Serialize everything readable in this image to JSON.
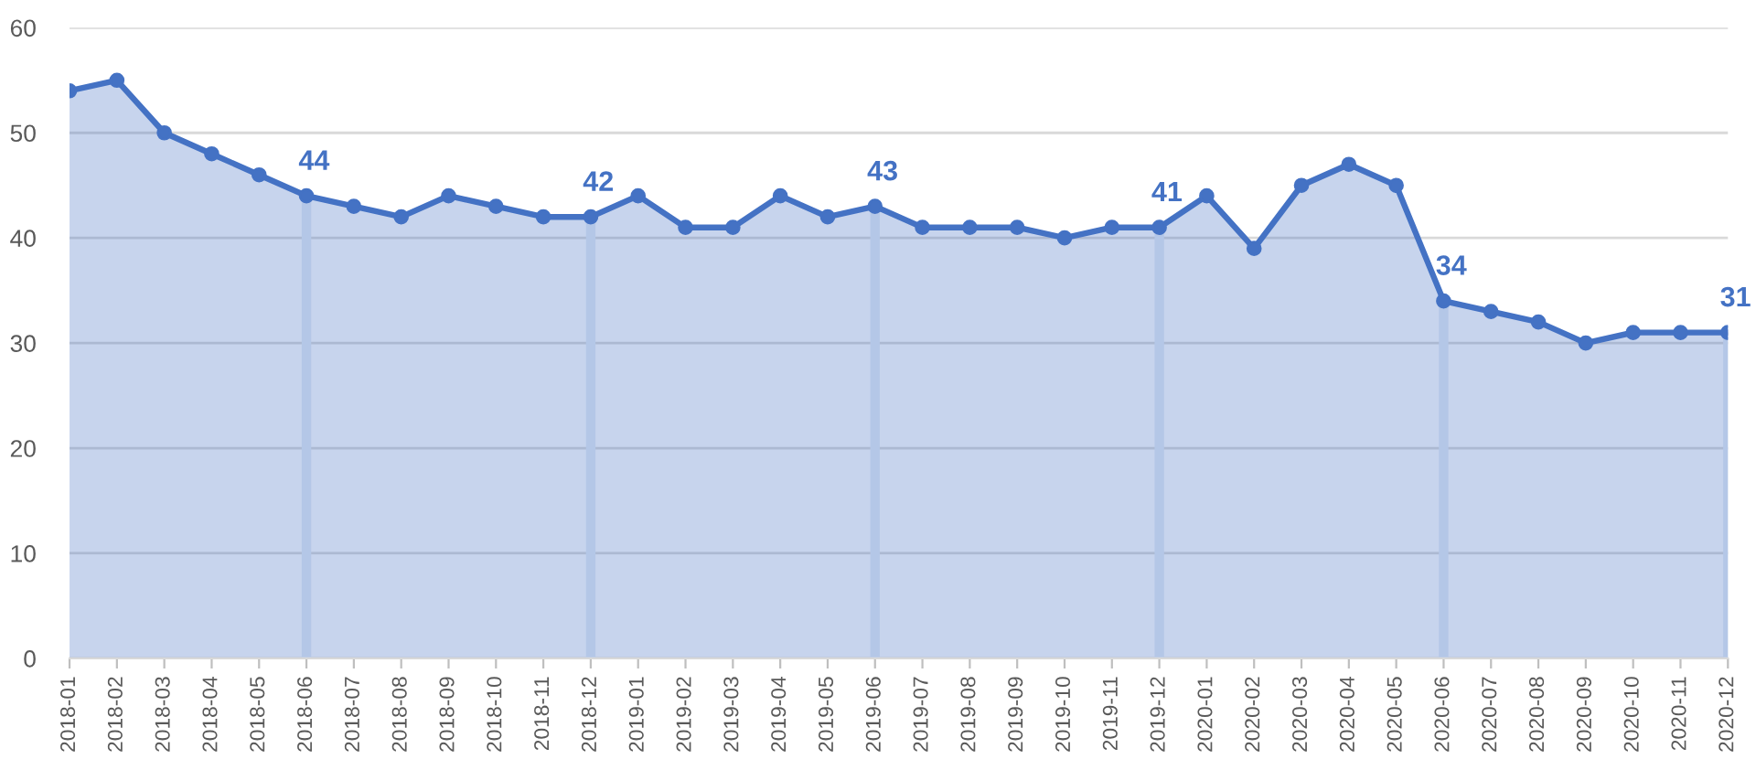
{
  "chart_data": {
    "type": "area",
    "categories": [
      "2018-01",
      "2018-02",
      "2018-03",
      "2018-04",
      "2018-05",
      "2018-06",
      "2018-07",
      "2018-08",
      "2018-09",
      "2018-10",
      "2018-11",
      "2018-12",
      "2019-01",
      "2019-02",
      "2019-03",
      "2019-04",
      "2019-05",
      "2019-06",
      "2019-07",
      "2019-08",
      "2019-09",
      "2019-10",
      "2019-11",
      "2019-12",
      "2020-01",
      "2020-02",
      "2020-03",
      "2020-04",
      "2020-05",
      "2020-06",
      "2020-07",
      "2020-08",
      "2020-09",
      "2020-10",
      "2020-11",
      "2020-12"
    ],
    "series": [
      {
        "type": "bar",
        "color": "#b4c7e7",
        "values": [
          null,
          null,
          null,
          null,
          null,
          44,
          null,
          null,
          null,
          null,
          null,
          42,
          null,
          null,
          null,
          null,
          null,
          43,
          null,
          null,
          null,
          null,
          null,
          41,
          null,
          null,
          null,
          null,
          null,
          34,
          null,
          null,
          null,
          null,
          null,
          31
        ]
      },
      {
        "color": "#4472c4",
        "values": [
          54,
          55,
          50,
          48,
          46,
          44,
          43,
          42,
          44,
          43,
          42,
          42,
          44,
          41,
          41,
          44,
          42,
          43,
          41,
          41,
          41,
          40,
          41,
          41,
          44,
          39,
          45,
          47,
          45,
          34,
          33,
          32,
          30,
          31,
          31,
          31
        ],
        "value_labels": [
          null,
          null,
          null,
          null,
          null,
          "44",
          null,
          null,
          null,
          null,
          null,
          "42",
          null,
          null,
          null,
          null,
          null,
          "43",
          null,
          null,
          null,
          null,
          null,
          "41",
          null,
          null,
          null,
          null,
          null,
          "34",
          null,
          null,
          null,
          null,
          null,
          "31"
        ]
      }
    ],
    "ylim": [
      0,
      60
    ],
    "yticks": [
      0,
      10,
      20,
      30,
      40,
      50,
      60
    ],
    "grid": "y",
    "marker": "circle",
    "line_style": "solid"
  }
}
